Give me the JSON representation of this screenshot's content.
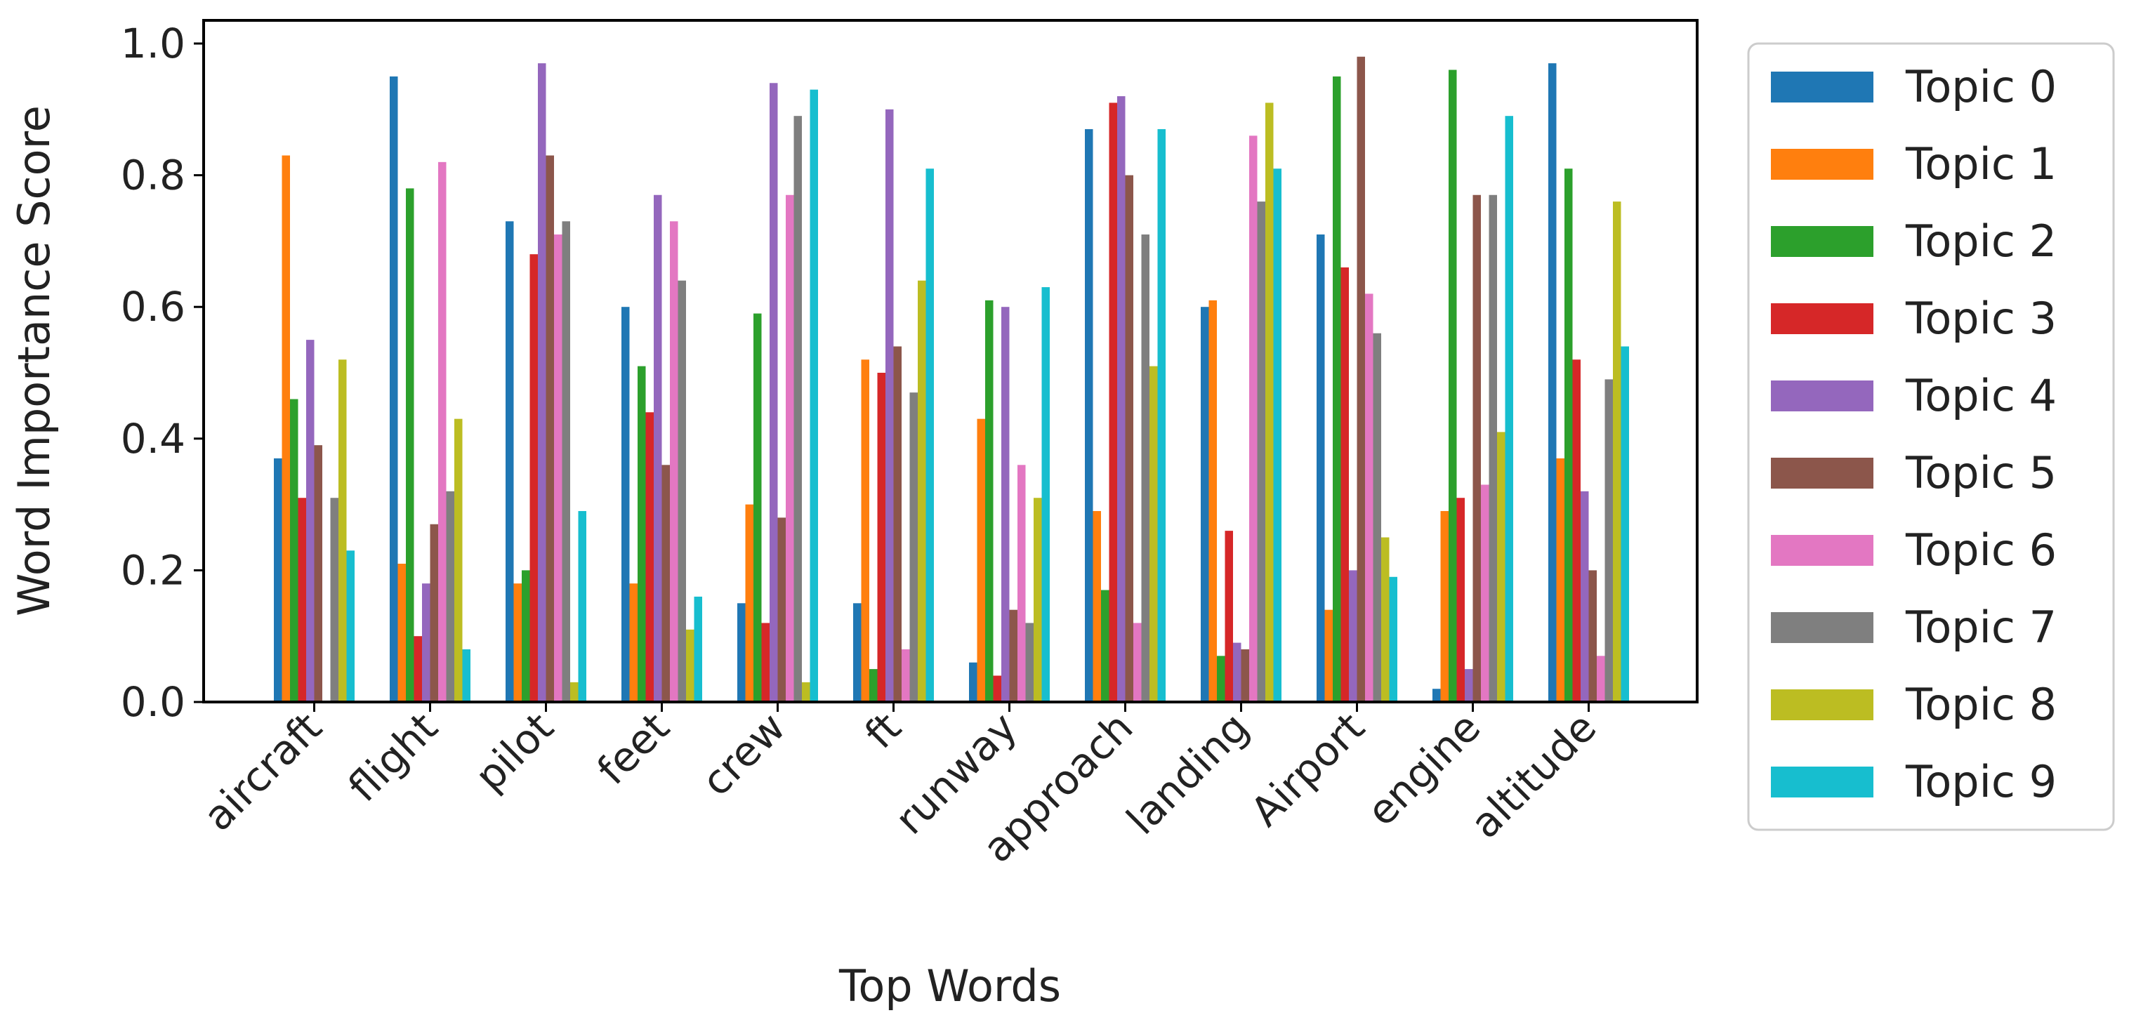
{
  "chart_data": {
    "type": "bar",
    "xlabel": "Top Words",
    "ylabel": "Word Importance Score",
    "ylim": [
      0,
      1.0
    ],
    "yticks": [
      "0.0",
      "0.2",
      "0.4",
      "0.6",
      "0.8",
      "1.0"
    ],
    "grid": false,
    "legend_position": "outside-right",
    "categories": [
      "aircraft",
      "flight",
      "pilot",
      "feet",
      "crew",
      "ft",
      "runway",
      "approach",
      "landing",
      "Airport",
      "engine",
      "altitude"
    ],
    "series": [
      {
        "name": "Topic 0",
        "color": "#1f77b4",
        "values": [
          0.37,
          0.95,
          0.73,
          0.6,
          0.15,
          0.15,
          0.06,
          0.87,
          0.6,
          0.71,
          0.02,
          0.97
        ]
      },
      {
        "name": "Topic 1",
        "color": "#ff7f0e",
        "values": [
          0.83,
          0.21,
          0.18,
          0.18,
          0.3,
          0.52,
          0.43,
          0.29,
          0.61,
          0.14,
          0.29,
          0.37
        ]
      },
      {
        "name": "Topic 2",
        "color": "#2ca02c",
        "values": [
          0.46,
          0.78,
          0.2,
          0.51,
          0.59,
          0.05,
          0.61,
          0.17,
          0.07,
          0.95,
          0.96,
          0.81
        ]
      },
      {
        "name": "Topic 3",
        "color": "#d62728",
        "values": [
          0.31,
          0.1,
          0.68,
          0.44,
          0.12,
          0.5,
          0.04,
          0.91,
          0.26,
          0.66,
          0.31,
          0.52
        ]
      },
      {
        "name": "Topic 4",
        "color": "#9467bd",
        "values": [
          0.55,
          0.18,
          0.97,
          0.77,
          0.94,
          0.9,
          0.6,
          0.92,
          0.09,
          0.2,
          0.05,
          0.32
        ]
      },
      {
        "name": "Topic 5",
        "color": "#8c564b",
        "values": [
          0.39,
          0.27,
          0.83,
          0.36,
          0.28,
          0.54,
          0.14,
          0.8,
          0.08,
          0.98,
          0.77,
          0.2
        ]
      },
      {
        "name": "Topic 6",
        "color": "#e377c2",
        "values": [
          0.0,
          0.82,
          0.71,
          0.73,
          0.77,
          0.08,
          0.36,
          0.12,
          0.86,
          0.62,
          0.33,
          0.07
        ]
      },
      {
        "name": "Topic 7",
        "color": "#7f7f7f",
        "values": [
          0.31,
          0.32,
          0.73,
          0.64,
          0.89,
          0.47,
          0.12,
          0.71,
          0.76,
          0.56,
          0.77,
          0.49
        ]
      },
      {
        "name": "Topic 8",
        "color": "#bcbd22",
        "values": [
          0.52,
          0.43,
          0.03,
          0.11,
          0.03,
          0.64,
          0.31,
          0.51,
          0.91,
          0.25,
          0.41,
          0.76
        ]
      },
      {
        "name": "Topic 9",
        "color": "#17becf",
        "values": [
          0.23,
          0.08,
          0.29,
          0.16,
          0.93,
          0.81,
          0.63,
          0.87,
          0.81,
          0.19,
          0.89,
          0.54
        ]
      }
    ]
  }
}
